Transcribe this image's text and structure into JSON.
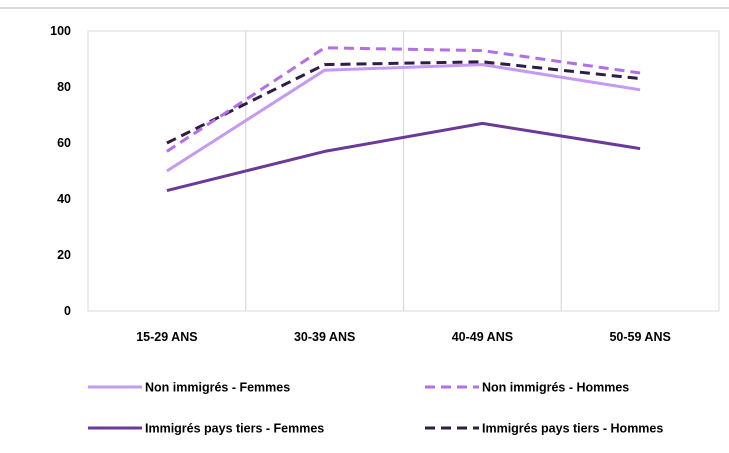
{
  "chart_data": {
    "type": "line",
    "categories": [
      "15-29 ANS",
      "30-39 ANS",
      "40-49 ANS",
      "50-59 ANS"
    ],
    "ylim": [
      0,
      100
    ],
    "yticks": [
      0,
      20,
      40,
      60,
      80,
      100
    ],
    "grid": "vertical",
    "legend_position": "bottom",
    "series": [
      {
        "name": "Non immigrés - Femmes",
        "values": [
          50,
          86,
          88,
          79
        ],
        "color": "#c49bf0",
        "dash": "solid"
      },
      {
        "name": "Non immigrés - Hommes",
        "values": [
          57,
          94,
          93,
          85
        ],
        "color": "#b46fe6",
        "dash": "dashed"
      },
      {
        "name": "Immigrés pays tiers - Femmes",
        "values": [
          43,
          57,
          67,
          58
        ],
        "color": "#6b3a98",
        "dash": "solid"
      },
      {
        "name": "Immigrés pays tiers - Hommes",
        "values": [
          60,
          88,
          89,
          83
        ],
        "color": "#2f1d45",
        "dash": "dashed"
      }
    ]
  }
}
